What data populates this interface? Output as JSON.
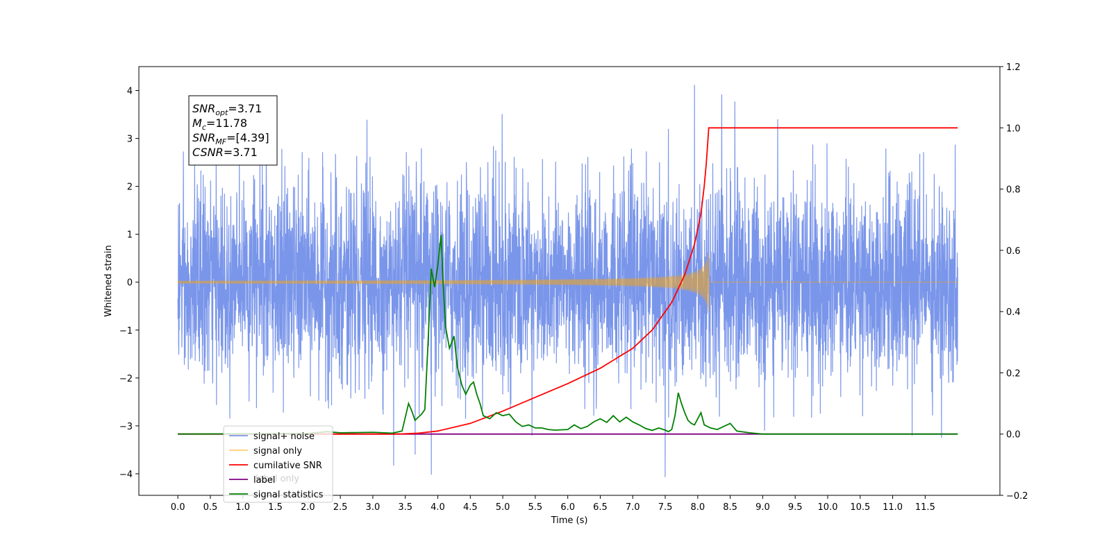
{
  "chart_data": {
    "type": "line",
    "xlabel": "Time (s)",
    "ylabel": "Whitened strain",
    "y2label": "",
    "xlim": [
      -0.6,
      12.65
    ],
    "ylim": [
      -4.45,
      4.5
    ],
    "y2lim": [
      -0.2,
      1.2
    ],
    "x_ticks": [
      "0.0",
      "0.5",
      "1.0",
      "1.5",
      "2.0",
      "2.5",
      "3.0",
      "3.5",
      "4.0",
      "4.5",
      "5.0",
      "5.5",
      "6.0",
      "6.5",
      "7.0",
      "7.5",
      "8.0",
      "8.5",
      "9.0",
      "9.5",
      "10.0",
      "10.5",
      "11.0",
      "11.5"
    ],
    "y_ticks": [
      "4",
      "3",
      "2",
      "1",
      "0",
      "−1",
      "−2",
      "−3",
      "−4"
    ],
    "y2_ticks": [
      "1.2",
      "1.0",
      "0.8",
      "0.6",
      "0.4",
      "0.2",
      "0.0",
      "−0.2"
    ],
    "annotation": {
      "lines": [
        {
          "base": "SNR",
          "sub": "opt",
          "value": "=3.71"
        },
        {
          "base": "M",
          "sub": "c",
          "value": "=11.78"
        },
        {
          "base": "SNR",
          "sub": "MF",
          "value": "=[4.39]"
        },
        {
          "base": "CSNR",
          "sub": "",
          "value": "=3.71"
        }
      ]
    },
    "legend": {
      "placement": "lower-left",
      "entries": [
        {
          "label": "signal+ noise",
          "color": "#4169E1"
        },
        {
          "label": "signal only",
          "color": "#FFA500"
        },
        {
          "label": "cumilative SNR",
          "color": "#FF0000"
        },
        {
          "label": "label",
          "color": "#800080"
        },
        {
          "label": "signal statistics",
          "color": "#008000"
        }
      ],
      "hidden_text": "label only"
    },
    "series": [
      {
        "name": "signal+ noise",
        "axis": "left",
        "color": "#4169E1",
        "alpha": 0.7,
        "generated": "gaussian noise",
        "x_range": [
          0,
          12.0
        ],
        "samples": 4096,
        "typical_band": [
          -2.6,
          2.6
        ],
        "spikes": [
          {
            "x": 7.95,
            "y": 4.12
          },
          {
            "x": 8.37,
            "y": 3.92
          },
          {
            "x": 8.57,
            "y": 3.77
          },
          {
            "x": 4.99,
            "y": 3.51
          },
          {
            "x": 9.23,
            "y": 3.4
          },
          {
            "x": 2.91,
            "y": 3.39
          },
          {
            "x": 7.55,
            "y": 3.2
          },
          {
            "x": 9.03,
            "y": -3.1
          },
          {
            "x": 3.32,
            "y": -3.83
          },
          {
            "x": 3.9,
            "y": -4.02
          },
          {
            "x": 7.5,
            "y": -4.07
          },
          {
            "x": 3.65,
            "y": -3.6
          },
          {
            "x": 11.75,
            "y": -3.25
          },
          {
            "x": 11.3,
            "y": -3.2
          },
          {
            "x": 5.45,
            "y": -3.2
          }
        ]
      },
      {
        "name": "signal only",
        "axis": "left",
        "color": "#FFA500",
        "generated": "chirp",
        "x_range": [
          0,
          12.0
        ],
        "merger_time": 8.17,
        "peak_amplitude": 0.68
      },
      {
        "name": "cumilative SNR",
        "axis": "right",
        "color": "#FF0000",
        "x": [
          0.0,
          3.4,
          3.7,
          4.0,
          4.5,
          5.0,
          5.5,
          6.0,
          6.5,
          7.0,
          7.3,
          7.6,
          7.8,
          7.95,
          8.05,
          8.1,
          8.13,
          8.15,
          8.17,
          9.0,
          10.0,
          11.0,
          12.0
        ],
        "y": [
          0.0,
          0.0,
          0.003,
          0.01,
          0.035,
          0.075,
          0.12,
          0.165,
          0.215,
          0.28,
          0.34,
          0.43,
          0.52,
          0.62,
          0.72,
          0.81,
          0.88,
          0.94,
          1.0,
          1.0,
          1.0,
          1.0,
          1.0
        ]
      },
      {
        "name": "label",
        "axis": "right",
        "color": "#800080",
        "x": [
          0.0,
          12.0
        ],
        "y": [
          0.0,
          0.0
        ]
      },
      {
        "name": "signal statistics",
        "axis": "right",
        "color": "#008000",
        "x": [
          0.0,
          2.0,
          2.3,
          2.5,
          3.0,
          3.3,
          3.45,
          3.55,
          3.6,
          3.65,
          3.7,
          3.75,
          3.8,
          3.85,
          3.9,
          3.95,
          4.0,
          4.05,
          4.08,
          4.12,
          4.18,
          4.25,
          4.3,
          4.37,
          4.43,
          4.5,
          4.55,
          4.6,
          4.65,
          4.7,
          4.8,
          4.9,
          5.0,
          5.1,
          5.2,
          5.3,
          5.4,
          5.5,
          5.6,
          5.7,
          5.8,
          6.0,
          6.1,
          6.2,
          6.3,
          6.4,
          6.5,
          6.6,
          6.7,
          6.8,
          6.9,
          7.0,
          7.1,
          7.2,
          7.3,
          7.4,
          7.5,
          7.55,
          7.6,
          7.65,
          7.7,
          7.75,
          7.8,
          7.85,
          7.9,
          7.95,
          8.0,
          8.05,
          8.1,
          8.2,
          8.3,
          8.4,
          8.5,
          8.6,
          8.8,
          9.0,
          12.0
        ],
        "y": [
          0.0,
          0.002,
          0.008,
          0.004,
          0.006,
          0.003,
          0.01,
          0.1,
          0.075,
          0.045,
          0.055,
          0.065,
          0.08,
          0.3,
          0.54,
          0.48,
          0.55,
          0.65,
          0.5,
          0.35,
          0.28,
          0.32,
          0.22,
          0.16,
          0.13,
          0.16,
          0.17,
          0.13,
          0.1,
          0.06,
          0.05,
          0.07,
          0.06,
          0.065,
          0.04,
          0.025,
          0.03,
          0.02,
          0.02,
          0.015,
          0.013,
          0.015,
          0.03,
          0.018,
          0.025,
          0.04,
          0.05,
          0.038,
          0.06,
          0.04,
          0.055,
          0.04,
          0.03,
          0.018,
          0.012,
          0.02,
          0.013,
          0.008,
          0.015,
          0.06,
          0.135,
          0.1,
          0.07,
          0.045,
          0.035,
          0.03,
          0.05,
          0.07,
          0.03,
          0.02,
          0.015,
          0.025,
          0.035,
          0.01,
          0.004,
          0.0,
          0.0
        ]
      }
    ]
  }
}
